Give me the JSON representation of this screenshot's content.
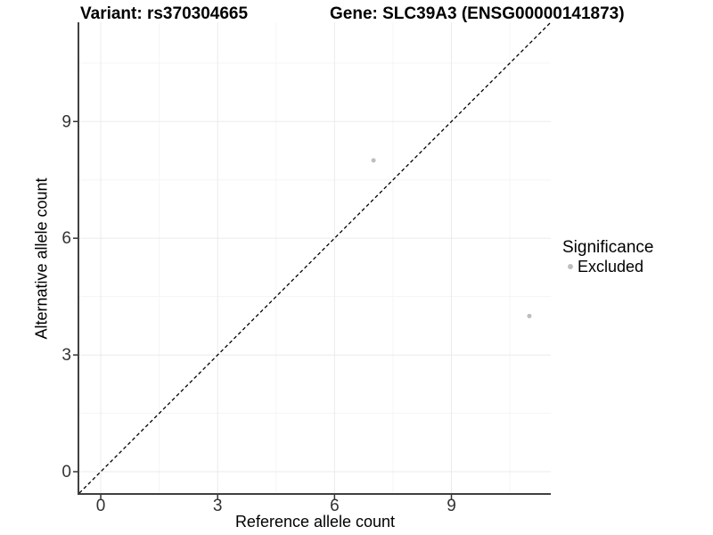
{
  "chart_data": {
    "type": "scatter",
    "title_left": "Variant: rs370304665",
    "title_right": "Gene: SLC39A3 (ENSG00000141873)",
    "xlabel": "Reference allele count",
    "ylabel": "Alternative allele count",
    "xlim": [
      -0.55,
      11.55
    ],
    "ylim": [
      -0.55,
      11.55
    ],
    "x_ticks": [
      0,
      3,
      6,
      9
    ],
    "y_ticks": [
      0,
      3,
      6,
      9
    ],
    "x_minor_ticks": [
      1.5,
      4.5,
      7.5,
      10.5
    ],
    "y_minor_ticks": [
      1.5,
      4.5,
      7.5,
      10.5
    ],
    "grid": true,
    "legend": {
      "title": "Significance",
      "position": "right",
      "items": [
        {
          "label": "Excluded",
          "color": "#bebebe"
        }
      ]
    },
    "reference_line": {
      "type": "identity",
      "style": "dashed",
      "color": "#000000",
      "dash": "4 3",
      "width": 1.3
    },
    "series": [
      {
        "name": "Excluded",
        "color": "#bebebe",
        "point_radius": 2.5,
        "points": [
          [
            7,
            8
          ],
          [
            11,
            4
          ]
        ]
      }
    ]
  },
  "colors": {
    "background": "#ffffff",
    "axis_line": "#404040",
    "tick_mark": "#333333",
    "tick_label": "#333333",
    "grid_major": "#ebebeb",
    "grid_minor": "#f5f5f5",
    "title": "#000000",
    "point": "#bebebe"
  }
}
